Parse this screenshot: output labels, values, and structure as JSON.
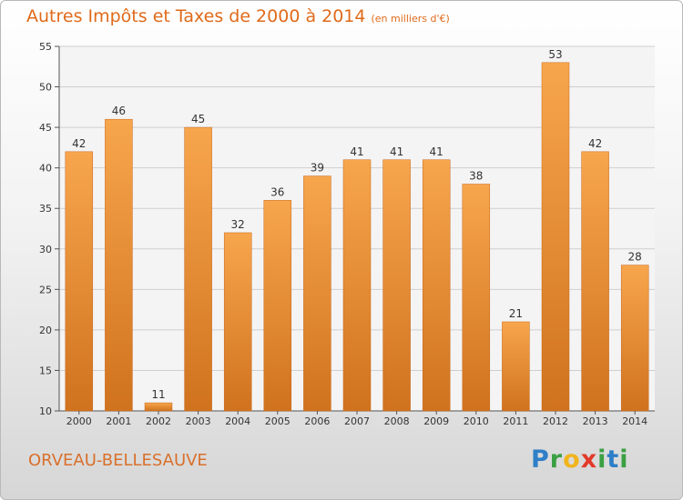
{
  "header": {
    "title": "Autres Impôts et Taxes de 2000 à 2014",
    "subtitle": "(en milliers d'€)"
  },
  "footer": {
    "place": "ORVEAU-BELLESAUVE",
    "logo": "Proxiti"
  },
  "colors": {
    "bar_top": "#f7a64d",
    "bar_bottom": "#d0721e",
    "title": "#e06a1a"
  },
  "chart_data": {
    "type": "bar",
    "title": "Autres Impôts et Taxes de 2000 à 2014",
    "subtitle": "(en milliers d'€)",
    "xlabel": "",
    "ylabel": "",
    "categories": [
      "2000",
      "2001",
      "2002",
      "2003",
      "2004",
      "2005",
      "2006",
      "2007",
      "2008",
      "2009",
      "2010",
      "2011",
      "2012",
      "2013",
      "2014"
    ],
    "values": [
      42,
      46,
      11,
      45,
      32,
      36,
      39,
      41,
      41,
      41,
      38,
      21,
      53,
      42,
      28
    ],
    "ylim": [
      10,
      55
    ],
    "yticks": [
      10,
      15,
      20,
      25,
      30,
      35,
      40,
      45,
      50,
      55
    ],
    "grid": true,
    "legend": "none",
    "data_labels": true
  }
}
